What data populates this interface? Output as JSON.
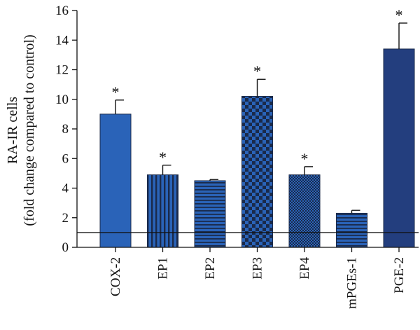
{
  "chart_data": {
    "type": "bar",
    "ylabel_line1": "RA-IR cells",
    "ylabel_line2": "(fold change compared to control)",
    "ylim": [
      0,
      16
    ],
    "yticks": [
      0,
      2,
      4,
      6,
      8,
      10,
      12,
      14,
      16
    ],
    "reference_line": 1,
    "categories": [
      "COX-2",
      "EP1",
      "EP2",
      "EP3",
      "EP4",
      "mPGEs-1",
      "PGE-2"
    ],
    "values": [
      9.0,
      4.9,
      4.5,
      10.2,
      4.9,
      2.3,
      13.4
    ],
    "errors": [
      0.95,
      0.65,
      0.08,
      1.15,
      0.55,
      0.2,
      1.75
    ],
    "significance": [
      "*",
      "*",
      "",
      "*",
      "*",
      "",
      "*"
    ],
    "patterns": [
      "solid",
      "vstripe",
      "hstripe",
      "check",
      "finecheck",
      "hstripe",
      "solid-dark"
    ],
    "colors": {
      "bar_blue": "#2a63b8",
      "bar_dark": "#233e7e",
      "stripe_dark": "#1a2a4a"
    }
  }
}
